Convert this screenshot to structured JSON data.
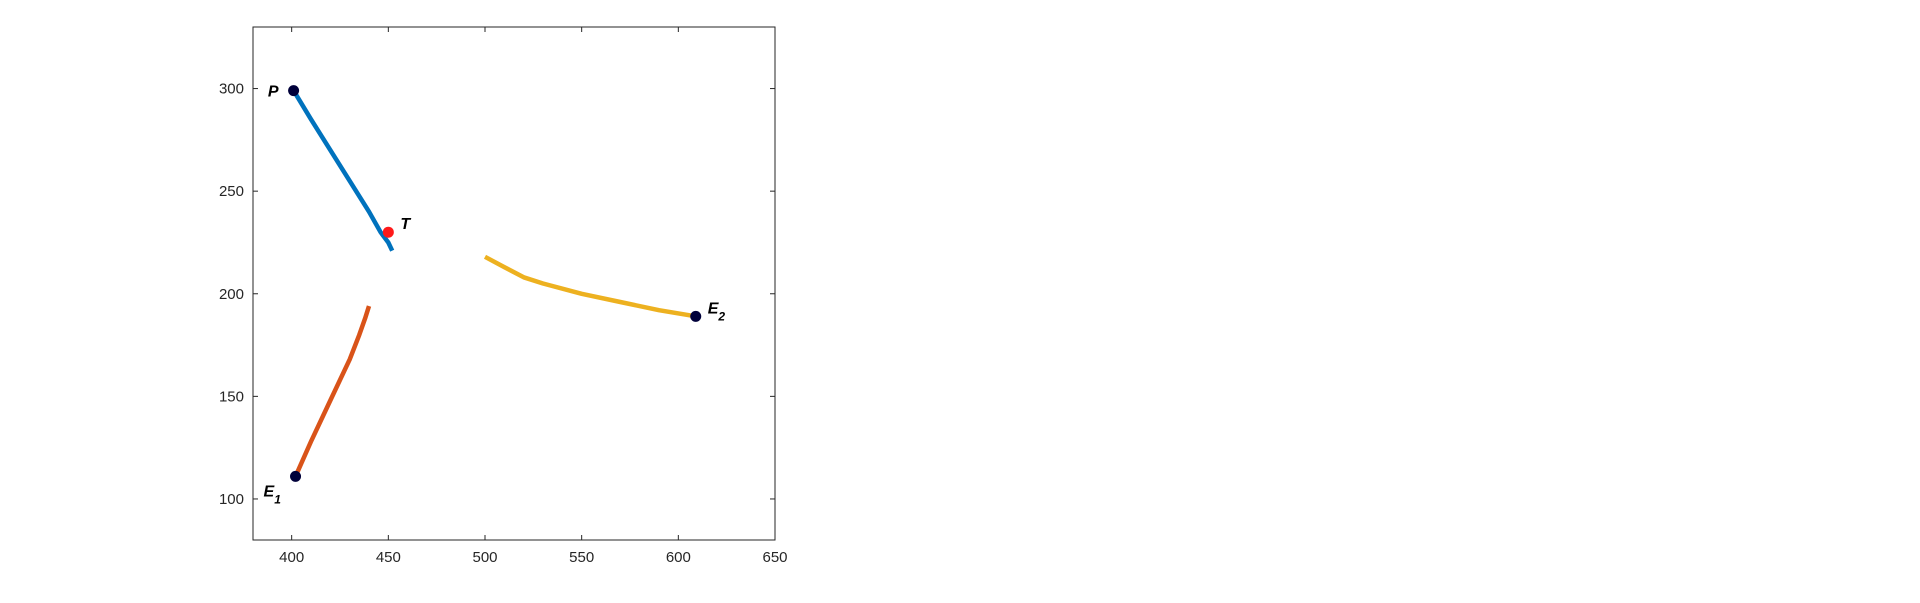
{
  "chart_data": {
    "type": "line",
    "title": "",
    "xlabel": "",
    "ylabel": "",
    "xlim": [
      380,
      650
    ],
    "ylim": [
      80,
      330
    ],
    "xticks": [
      400,
      450,
      500,
      550,
      600,
      650
    ],
    "yticks": [
      100,
      150,
      200,
      250,
      300
    ],
    "grid": false,
    "series": [
      {
        "color": "#0072BD",
        "x": [
          401,
          410,
          420,
          430,
          440,
          446,
          450,
          452
        ],
        "y": [
          299,
          285,
          270,
          255,
          240,
          230,
          225,
          221
        ]
      },
      {
        "color": "#D95319",
        "x": [
          402,
          410,
          420,
          430,
          435,
          438,
          440
        ],
        "y": [
          111,
          128,
          148,
          168,
          180,
          188,
          194
        ]
      },
      {
        "color": "#EDB120",
        "x": [
          500,
          510,
          520,
          530,
          550,
          570,
          590,
          609
        ],
        "y": [
          218,
          213,
          208,
          205,
          200,
          196,
          192,
          189
        ]
      }
    ],
    "points": [
      {
        "label": "P",
        "sub": "",
        "x": 401,
        "y": 299,
        "color": "#00003a",
        "label_pos": "left"
      },
      {
        "label": "T",
        "sub": "",
        "x": 450,
        "y": 230,
        "color": "#ff1a1a",
        "label_pos": "right"
      },
      {
        "label": "E",
        "sub": "1",
        "x": 402,
        "y": 111,
        "color": "#00003a",
        "label_pos": "below-left"
      },
      {
        "label": "E",
        "sub": "2",
        "x": 609,
        "y": 189,
        "color": "#00003a",
        "label_pos": "right"
      }
    ]
  }
}
